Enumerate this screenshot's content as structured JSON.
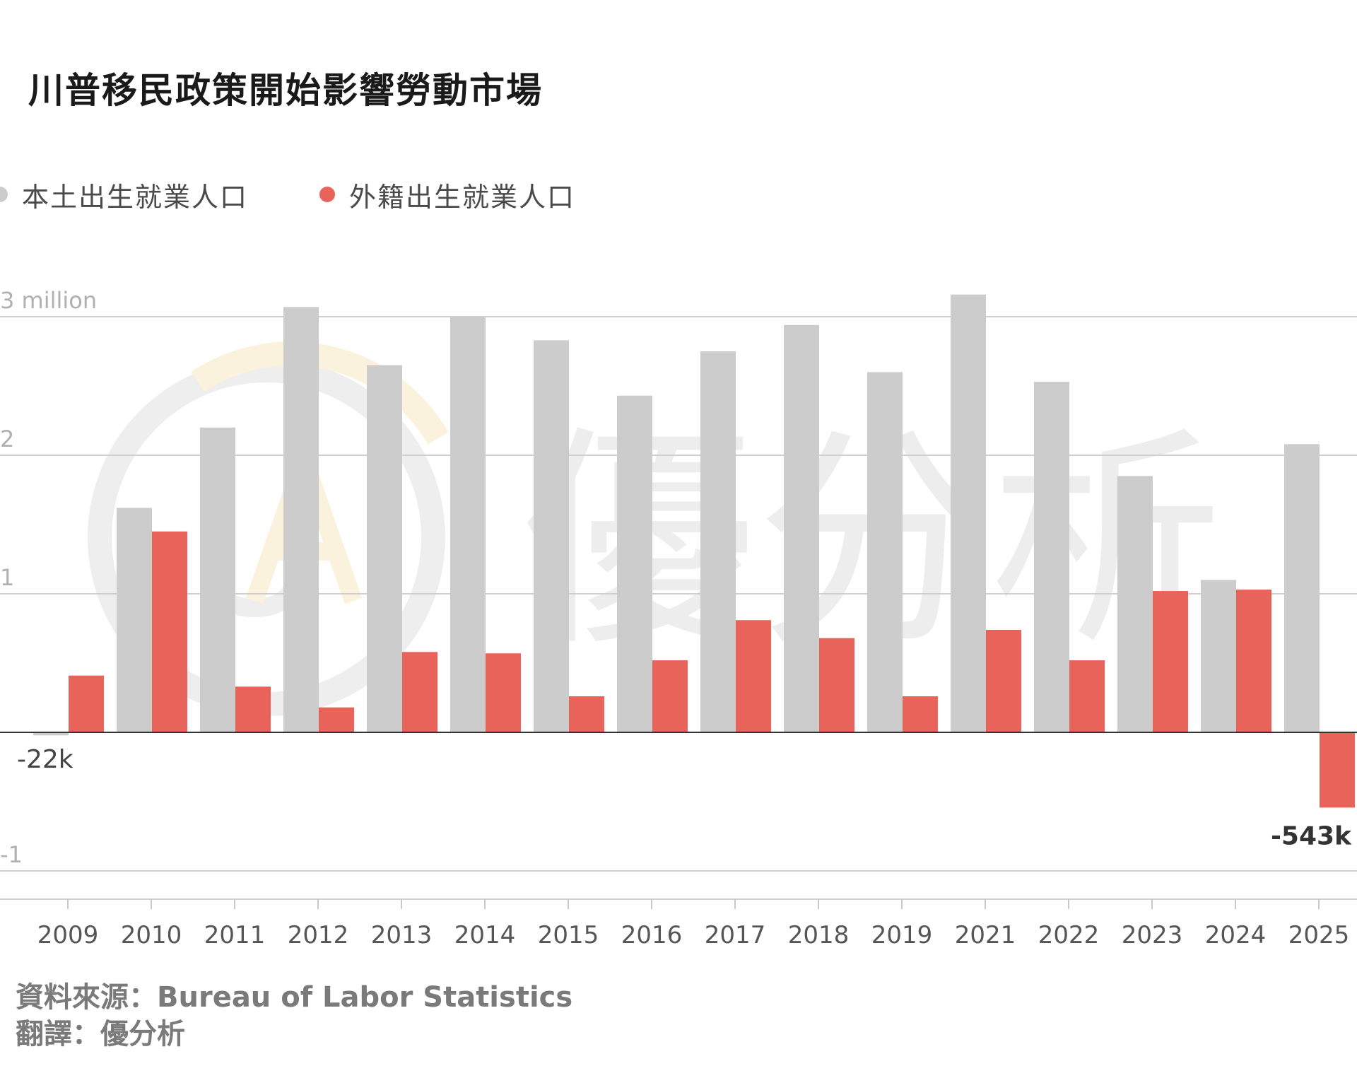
{
  "title": "川普移民政策開始影響勞動市場",
  "legend": [
    {
      "label": "本土出生就業人口",
      "color": "#cccccc"
    },
    {
      "label": "外籍出生就業人口",
      "color": "#e8635a"
    }
  ],
  "colors": {
    "native": "#cccccc",
    "foreign": "#e8635a",
    "grid": "#cfcfcf",
    "axis": "#333333"
  },
  "chart_data": {
    "type": "bar",
    "categories": [
      "2009",
      "2010",
      "2011",
      "2012",
      "2013",
      "2014",
      "2015",
      "2016",
      "2017",
      "2018",
      "2019",
      "2021",
      "2022",
      "2023",
      "2024",
      "2025"
    ],
    "series": [
      {
        "name": "本土出生就業人口",
        "values": [
          -0.022,
          1.62,
          2.2,
          3.07,
          2.65,
          3.0,
          2.83,
          2.43,
          2.75,
          2.94,
          2.6,
          3.16,
          2.53,
          1.85,
          1.1,
          2.08
        ]
      },
      {
        "name": "外籍出生就業人口",
        "values": [
          0.41,
          1.45,
          0.33,
          0.18,
          0.58,
          0.57,
          0.26,
          0.52,
          0.81,
          0.68,
          0.26,
          0.74,
          0.52,
          1.02,
          1.03,
          -0.543
        ]
      }
    ],
    "ylim": [
      -1,
      3
    ],
    "yticks": [
      {
        "value": 3,
        "label": "3 million"
      },
      {
        "value": 2,
        "label": "2"
      },
      {
        "value": 1,
        "label": "1"
      },
      {
        "value": -1,
        "label": "-1"
      }
    ],
    "annotations": [
      {
        "series": 0,
        "category": "2009",
        "label": "-22k",
        "bold": false
      },
      {
        "series": 1,
        "category": "2025",
        "label": "-543k",
        "bold": true
      }
    ],
    "grid": true
  },
  "watermark": {
    "text": "優分析"
  },
  "footer": {
    "source": "資料來源：Bureau of Labor Statistics",
    "translation": "翻譯：優分析"
  }
}
